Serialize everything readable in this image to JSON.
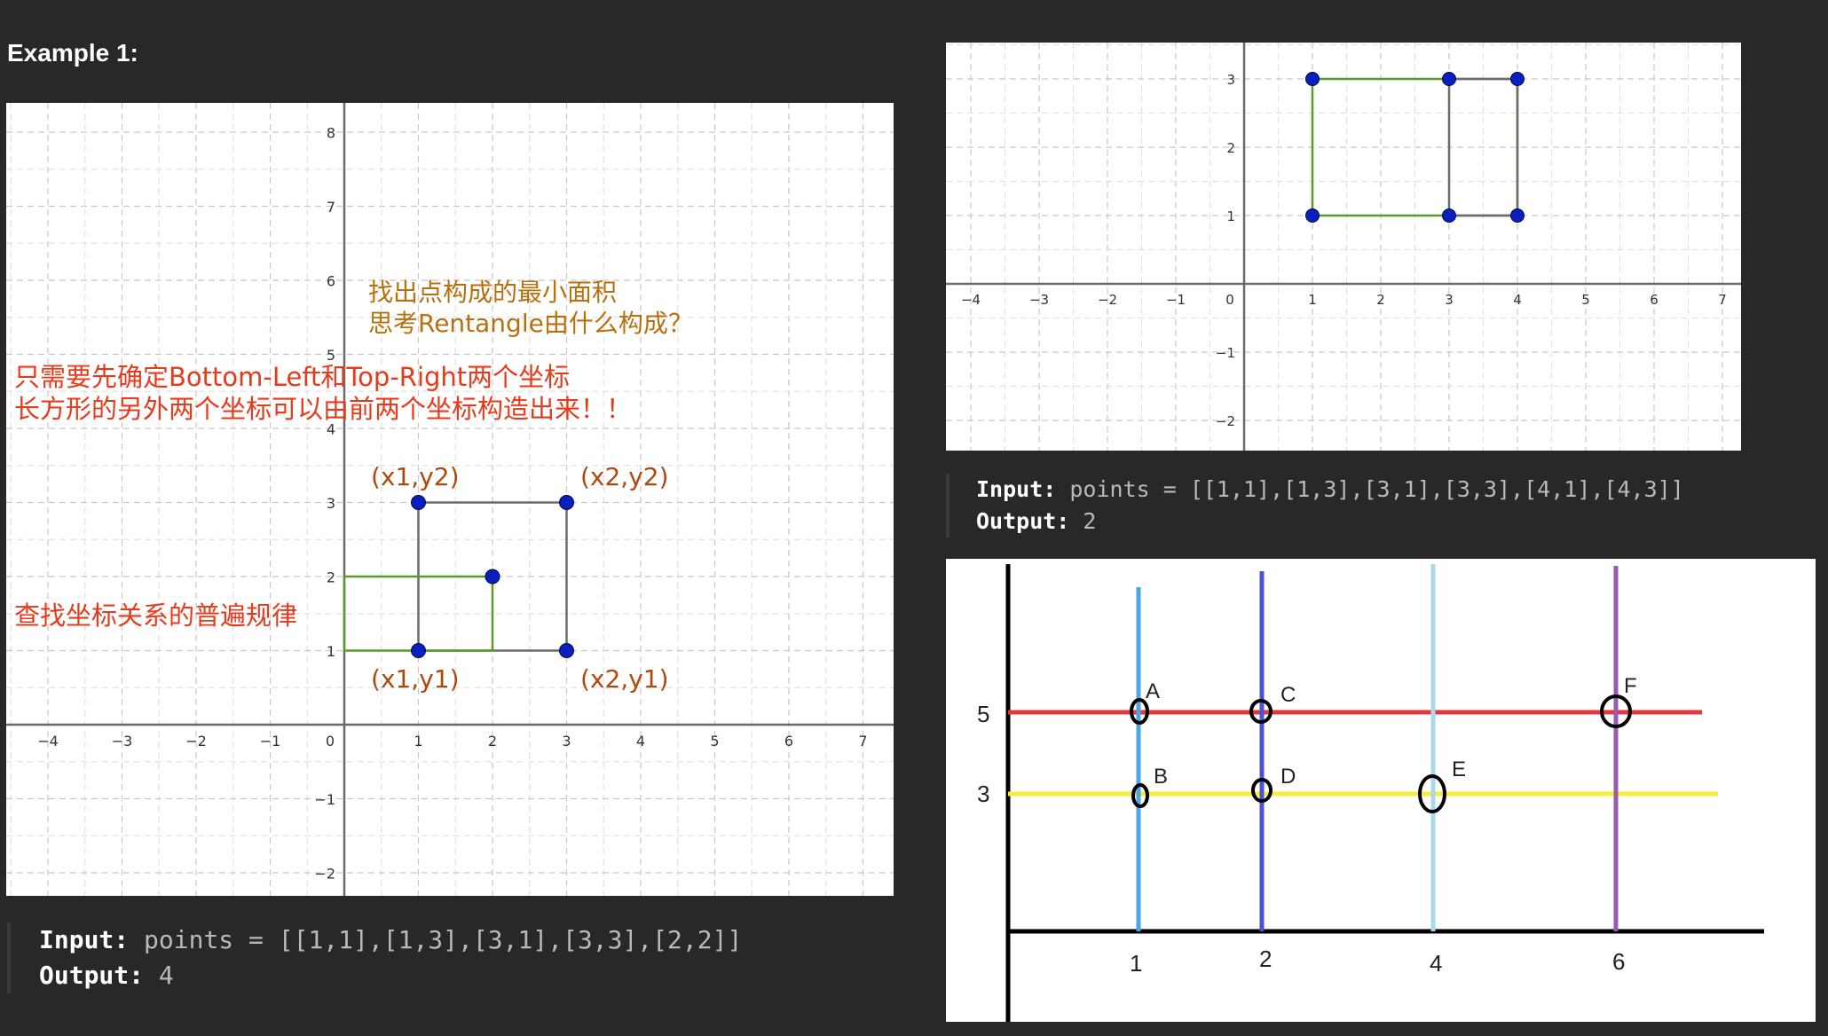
{
  "heading": "Example 1:",
  "colors": {
    "bg": "#282828",
    "annotation_orange": "#e8391b",
    "annotation_brown": "#b8700f",
    "label_brown": "#b0490f",
    "point_blue": "#0a1fbf",
    "rect_green": "#5a9a2a",
    "rect_gray": "#6b6b6b"
  },
  "left_graph": {
    "x_ticks": [
      "−4",
      "−3",
      "−2",
      "−1",
      "0",
      "1",
      "2",
      "3",
      "4",
      "5",
      "6",
      "7"
    ],
    "y_ticks": [
      "8",
      "7",
      "6",
      "5",
      "4",
      "3",
      "2",
      "1",
      "−1",
      "−2"
    ],
    "points": [
      [
        1,
        1
      ],
      [
        1,
        3
      ],
      [
        3,
        1
      ],
      [
        3,
        3
      ],
      [
        2,
        2
      ]
    ],
    "labels": [
      "(x1,y2)",
      "(x2,y2)",
      "(x1,y1)",
      "(x2,y1)"
    ],
    "note_brown": "找出点构成的最小面积\n思考Rentangle由什么构成？",
    "note_orange": "只需要先确定Bottom-Left和Top-Right两个坐标\n长方形的另外两个坐标可以由前两个坐标构造出来！！",
    "note_bottom": "查找坐标关系的普遍规律"
  },
  "left_code": {
    "input_label": "Input:",
    "input_value": " points = [[1,1],[1,3],[3,1],[3,3],[2,2]]",
    "output_label": "Output:",
    "output_value": " 4"
  },
  "right_graph": {
    "x_ticks": [
      "−4",
      "−3",
      "−2",
      "−1",
      "0",
      "1",
      "2",
      "3",
      "4",
      "5",
      "6",
      "7"
    ],
    "y_ticks": [
      "3",
      "2",
      "1",
      "−1",
      "−2"
    ],
    "points": [
      [
        1,
        1
      ],
      [
        1,
        3
      ],
      [
        3,
        1
      ],
      [
        3,
        3
      ],
      [
        4,
        1
      ],
      [
        4,
        3
      ]
    ]
  },
  "right_code": {
    "input_label": "Input:",
    "input_value": " points = [[1,1],[1,3],[3,1],[3,3],[4,1],[4,3]]",
    "output_label": "Output:",
    "output_value": " 2"
  },
  "hand_diagram": {
    "x_labels": [
      "1",
      "2",
      "4",
      "6"
    ],
    "y_labels": [
      "5",
      "3"
    ],
    "point_labels": [
      "A",
      "B",
      "C",
      "D",
      "E",
      "F"
    ]
  }
}
